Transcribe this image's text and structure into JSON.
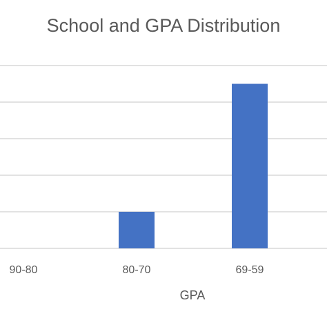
{
  "chart_data": {
    "type": "bar",
    "title": "School and GPA Distribution",
    "xlabel": "GPA",
    "ylabel": "",
    "categories": [
      "90-80",
      "80-70",
      "69-59"
    ],
    "series": [
      {
        "values": [
          0,
          2,
          9
        ]
      }
    ],
    "ylim": [
      0,
      10
    ],
    "y_gridlines": [
      0,
      2,
      4,
      6,
      8,
      10
    ],
    "grid": true,
    "legend": "none",
    "bar_color": "#4472C4",
    "grid_color": "#D9D9D9"
  }
}
